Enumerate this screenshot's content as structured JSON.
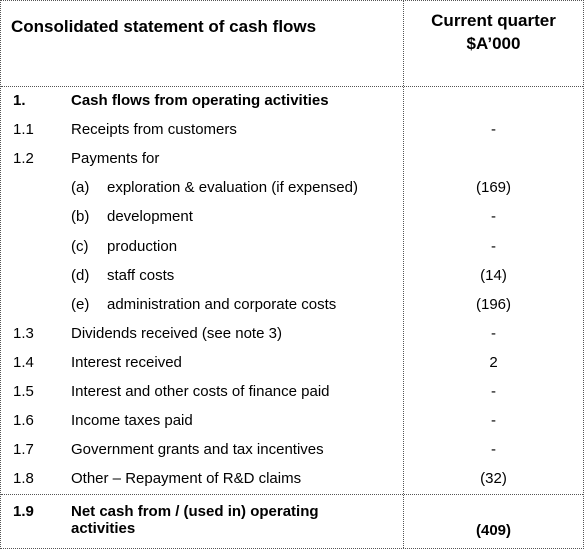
{
  "header": {
    "title": "Consolidated statement of cash flows",
    "column_heading": [
      "Current quarter",
      "$A’000"
    ]
  },
  "rows": [
    {
      "number": "1.",
      "label": "Cash flows from operating activities"
    },
    {
      "number": "1.1",
      "label": "Receipts from customers",
      "value": "-"
    },
    {
      "number": "1.2",
      "label": "Payments for"
    },
    {
      "item": "(a)",
      "label": "exploration & evaluation (if expensed)",
      "value": "(169)"
    },
    {
      "item": "(b)",
      "label": "development",
      "value": "-"
    },
    {
      "item": "(c)",
      "label": "production",
      "value": "-"
    },
    {
      "item": "(d)",
      "label": "staff costs",
      "value": "(14)"
    },
    {
      "item": "(e)",
      "label": "administration and corporate costs",
      "value": "(196)"
    },
    {
      "number": "1.3",
      "label": "Dividends received (see note 3)",
      "value": "-"
    },
    {
      "number": "1.4",
      "label": "Interest received",
      "value": "2"
    },
    {
      "number": "1.5",
      "label": "Interest and other costs of finance paid",
      "value": "-"
    },
    {
      "number": "1.6",
      "label": "Income taxes paid",
      "value": "-"
    },
    {
      "number": "1.7",
      "label": "Government grants and tax incentives",
      "value": "-"
    },
    {
      "number": "1.8",
      "label": "Other – Repayment of R&D claims",
      "value": "(32)"
    },
    {
      "number": "1.9",
      "label": "Net cash from / (used in) operating activities",
      "value": "(409)"
    }
  ]
}
